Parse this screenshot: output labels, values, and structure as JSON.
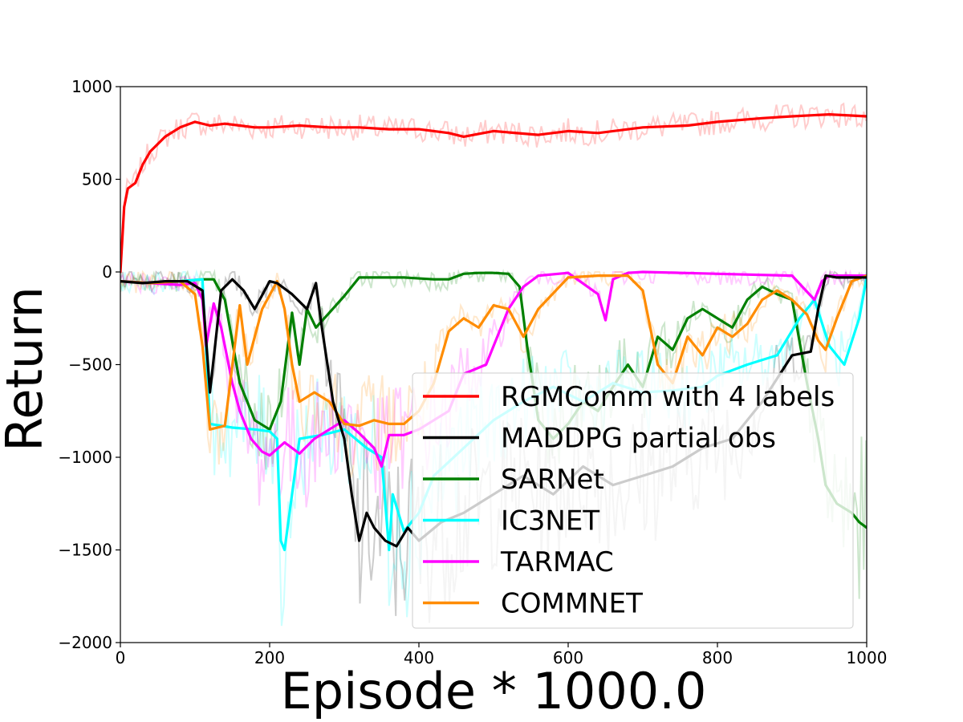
{
  "chart_data": {
    "type": "line",
    "title": "",
    "xlabel": "Episode * 1000.0",
    "ylabel": "Return",
    "xlim": [
      0,
      1000
    ],
    "ylim": [
      -2000,
      1000
    ],
    "xticks": [
      0,
      200,
      400,
      600,
      800,
      1000
    ],
    "yticks": [
      1000,
      500,
      0,
      -500,
      -1000,
      -1500,
      -2000
    ],
    "xtick_labels": [
      "0",
      "200",
      "400",
      "600",
      "800",
      "1000"
    ],
    "ytick_labels": [
      "1000",
      "500",
      "0",
      "−500",
      "−1000",
      "−1500",
      "−2000"
    ],
    "grid": false,
    "legend_position": "lower-right",
    "raw_series_shown_faded": true,
    "series": [
      {
        "name": "RGMComm with 4 labels",
        "color": "#ff0000",
        "x": [
          0,
          5,
          10,
          20,
          30,
          40,
          60,
          80,
          100,
          120,
          140,
          160,
          180,
          200,
          240,
          280,
          320,
          360,
          400,
          440,
          460,
          500,
          560,
          600,
          640,
          700,
          760,
          800,
          860,
          900,
          950,
          1000
        ],
        "y": [
          0,
          350,
          450,
          480,
          580,
          650,
          730,
          780,
          810,
          790,
          800,
          790,
          780,
          780,
          790,
          780,
          780,
          770,
          770,
          750,
          730,
          760,
          740,
          760,
          750,
          780,
          790,
          810,
          830,
          840,
          850,
          840
        ]
      },
      {
        "name": "MADDPG partial obs",
        "color": "#000000",
        "x": [
          0,
          30,
          60,
          90,
          110,
          120,
          135,
          150,
          165,
          180,
          200,
          210,
          230,
          250,
          262,
          270,
          285,
          300,
          310,
          320,
          330,
          340,
          355,
          370,
          385,
          400,
          430,
          460,
          500,
          540,
          580,
          620,
          660,
          700,
          740,
          780,
          820,
          860,
          900,
          925,
          935,
          945,
          960,
          1000
        ],
        "y": [
          -50,
          -60,
          -50,
          -50,
          -100,
          -650,
          -100,
          -40,
          -100,
          -200,
          -50,
          -60,
          -120,
          -200,
          -60,
          -300,
          -700,
          -900,
          -1200,
          -1450,
          -1300,
          -1380,
          -1450,
          -1480,
          -1380,
          -1450,
          -1350,
          -1300,
          -1200,
          -1100,
          -1200,
          -1050,
          -1150,
          -1100,
          -1050,
          -950,
          -900,
          -700,
          -450,
          -430,
          -200,
          -20,
          -30,
          -30
        ]
      },
      {
        "name": "SARNet",
        "color": "#008000",
        "x": [
          0,
          40,
          80,
          110,
          125,
          140,
          160,
          180,
          200,
          215,
          230,
          240,
          250,
          262,
          280,
          300,
          320,
          340,
          380,
          420,
          440,
          460,
          480,
          500,
          520,
          535,
          545,
          560,
          580,
          600,
          620,
          640,
          660,
          680,
          700,
          720,
          740,
          760,
          780,
          800,
          820,
          840,
          860,
          880,
          900,
          920,
          935,
          945,
          960,
          980,
          990,
          1000
        ],
        "y": [
          -50,
          -60,
          -50,
          -40,
          -40,
          -150,
          -600,
          -800,
          -850,
          -700,
          -220,
          -500,
          -200,
          -300,
          -220,
          -130,
          -30,
          -30,
          -30,
          -40,
          -40,
          -10,
          -5,
          -5,
          -10,
          -80,
          -400,
          -800,
          -900,
          -820,
          -700,
          -750,
          -620,
          -500,
          -620,
          -350,
          -420,
          -250,
          -200,
          -250,
          -300,
          -150,
          -80,
          -120,
          -150,
          -600,
          -900,
          -1150,
          -1250,
          -1300,
          -1350,
          -1380
        ]
      },
      {
        "name": "IC3NET",
        "color": "#00ffff",
        "x": [
          0,
          40,
          80,
          110,
          120,
          150,
          180,
          200,
          210,
          215,
          220,
          240,
          270,
          300,
          330,
          350,
          360,
          365,
          380,
          400,
          420,
          460,
          500,
          540,
          580,
          620,
          660,
          700,
          740,
          780,
          800,
          840,
          880,
          910,
          930,
          950,
          970,
          990,
          1000
        ],
        "y": [
          -50,
          -60,
          -50,
          -40,
          -820,
          -840,
          -850,
          -860,
          -900,
          -1450,
          -1500,
          -900,
          -880,
          -850,
          -950,
          -1000,
          -1500,
          -1200,
          -1400,
          -1300,
          -1100,
          -950,
          -800,
          -700,
          -620,
          -700,
          -600,
          -650,
          -640,
          -620,
          -560,
          -500,
          -450,
          -250,
          -150,
          -400,
          -500,
          -250,
          -30
        ]
      },
      {
        "name": "TARMAC",
        "color": "#ff00ff",
        "x": [
          0,
          40,
          80,
          100,
          110,
          115,
          125,
          135,
          150,
          160,
          175,
          190,
          200,
          220,
          240,
          260,
          280,
          300,
          320,
          340,
          350,
          360,
          380,
          400,
          420,
          440,
          460,
          490,
          520,
          540,
          560,
          600,
          640,
          650,
          660,
          680,
          700,
          800,
          900,
          930,
          940,
          950,
          1000
        ],
        "y": [
          -50,
          -60,
          -70,
          -60,
          -150,
          -400,
          -170,
          -300,
          -600,
          -750,
          -900,
          -970,
          -990,
          -920,
          -980,
          -900,
          -850,
          -800,
          -870,
          -950,
          -1050,
          -880,
          -880,
          -850,
          -800,
          -750,
          -550,
          -500,
          -200,
          -80,
          -20,
          -5,
          -120,
          -260,
          -40,
          -5,
          0,
          -10,
          -20,
          -150,
          -50,
          -20,
          -20
        ]
      },
      {
        "name": "COMMNET",
        "color": "#ff8c00",
        "x": [
          0,
          40,
          80,
          100,
          110,
          120,
          140,
          160,
          170,
          190,
          210,
          220,
          230,
          240,
          260,
          280,
          300,
          320,
          340,
          360,
          380,
          400,
          420,
          440,
          460,
          480,
          500,
          520,
          540,
          560,
          600,
          640,
          680,
          700,
          720,
          740,
          760,
          780,
          800,
          820,
          840,
          860,
          880,
          900,
          920,
          935,
          945,
          960,
          980,
          1000
        ],
        "y": [
          -50,
          -60,
          -50,
          -120,
          -400,
          -850,
          -830,
          -180,
          -500,
          -200,
          -50,
          -200,
          -500,
          -700,
          -650,
          -700,
          -820,
          -830,
          -800,
          -820,
          -820,
          -750,
          -600,
          -320,
          -250,
          -300,
          -180,
          -200,
          -350,
          -200,
          -30,
          -20,
          -20,
          -100,
          -500,
          -600,
          -350,
          -450,
          -300,
          -350,
          -280,
          -150,
          -100,
          -150,
          -230,
          -370,
          -420,
          -250,
          -50,
          -20
        ]
      }
    ]
  }
}
